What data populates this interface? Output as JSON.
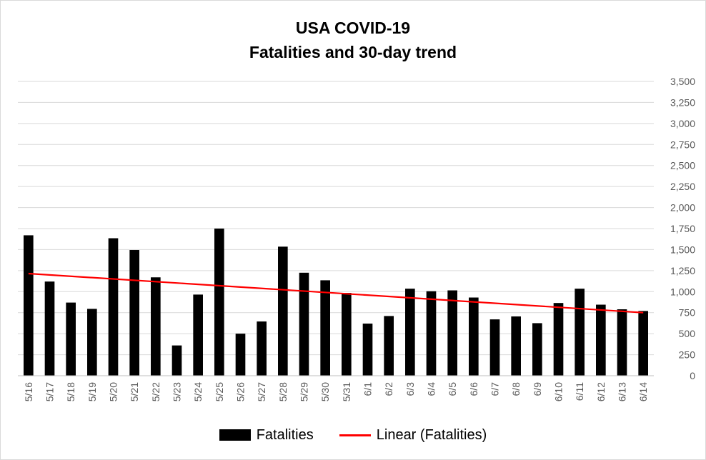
{
  "chart_data": {
    "type": "bar",
    "title": [
      "USA COVID-19",
      "Fatalities and 30-day trend"
    ],
    "xlabel": "",
    "ylabel": "",
    "categories": [
      "5/16",
      "5/17",
      "5/18",
      "5/19",
      "5/20",
      "5/21",
      "5/22",
      "5/23",
      "5/24",
      "5/25",
      "5/26",
      "5/27",
      "5/28",
      "5/29",
      "5/30",
      "5/31",
      "6/1",
      "6/2",
      "6/3",
      "6/4",
      "6/5",
      "6/6",
      "6/7",
      "6/8",
      "6/9",
      "6/10",
      "6/11",
      "6/12",
      "6/13",
      "6/14"
    ],
    "series": [
      {
        "name": "Fatalities",
        "type": "bar",
        "color": "#000000",
        "values": [
          1670,
          1120,
          870,
          795,
          1635,
          1495,
          1170,
          360,
          965,
          1750,
          500,
          645,
          1535,
          1225,
          1135,
          985,
          620,
          710,
          1035,
          1005,
          1015,
          930,
          670,
          705,
          625,
          865,
          1035,
          845,
          790,
          770
        ]
      },
      {
        "name": "Linear (Fatalities)",
        "type": "trendline",
        "color": "#ff0000",
        "start": 1215,
        "end": 750
      }
    ],
    "ylim": [
      0,
      3500
    ],
    "yticks": [
      "0",
      "250",
      "500",
      "750",
      "1,000",
      "1,250",
      "1,500",
      "1,750",
      "2,000",
      "2,250",
      "2,500",
      "2,750",
      "3,000",
      "3,250",
      "3,500"
    ],
    "y_axis_position": "right",
    "grid": true,
    "legend": "bottom"
  }
}
